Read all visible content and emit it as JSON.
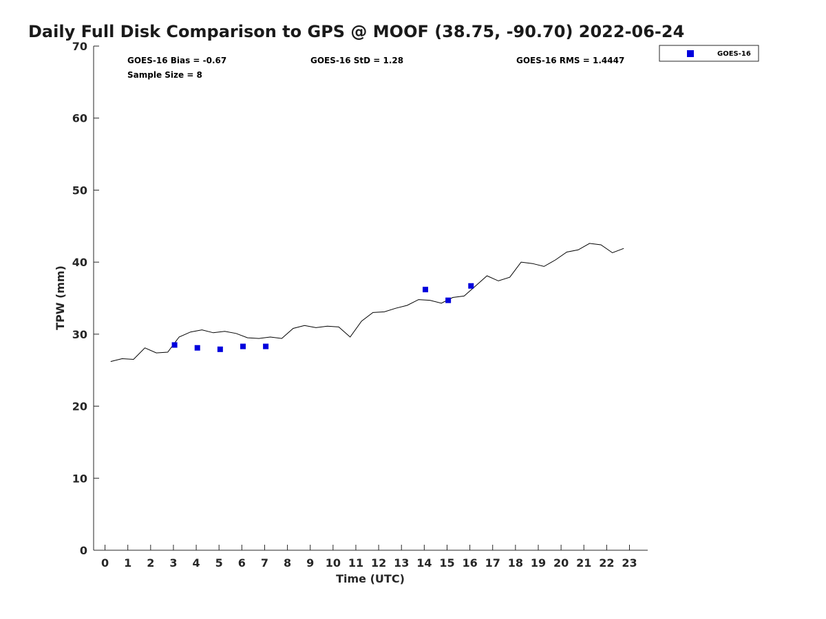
{
  "chart_data": {
    "type": "scatter",
    "title": "Daily Full Disk Comparison to GPS @ MOOF (38.75, -90.70) 2022-06-24",
    "xlabel": "Time (UTC)",
    "ylabel": "TPW (mm)",
    "xlim": [
      -0.5,
      23.8
    ],
    "ylim": [
      0,
      70
    ],
    "x_ticks": [
      0,
      1,
      2,
      3,
      4,
      5,
      6,
      7,
      8,
      9,
      10,
      11,
      12,
      13,
      14,
      15,
      16,
      17,
      18,
      19,
      20,
      21,
      22,
      23
    ],
    "y_ticks": [
      0,
      10,
      20,
      30,
      40,
      50,
      60,
      70
    ],
    "grid": false,
    "legend_position": "outside-top-right",
    "legend": [
      "GOES-16"
    ],
    "stats": {
      "bias": "GOES-16 Bias = -0.67",
      "std": "GOES-16 StD = 1.28",
      "rms": "GOES-16 RMS = 1.4447",
      "sample_size": "Sample Size = 8"
    },
    "series": [
      {
        "kind": "line",
        "color": "#000000",
        "x": [
          0.25,
          0.75,
          1.25,
          1.75,
          2.25,
          2.75,
          3.25,
          3.75,
          4.25,
          4.75,
          5.25,
          5.75,
          6.25,
          6.75,
          7.25,
          7.75,
          8.25,
          8.75,
          9.25,
          9.75,
          10.25,
          10.75,
          11.25,
          11.75,
          12.25,
          12.75,
          13.25,
          13.75,
          14.25,
          14.75,
          15.25,
          15.75,
          16.25,
          16.75,
          17.25,
          17.75,
          18.25,
          18.75,
          19.25,
          19.75,
          20.25,
          20.75,
          21.25,
          21.75,
          22.25,
          22.75
        ],
        "y": [
          26.2,
          26.6,
          26.5,
          28.1,
          27.4,
          27.5,
          29.6,
          30.3,
          30.6,
          30.2,
          30.4,
          30.1,
          29.5,
          29.4,
          29.6,
          29.4,
          30.8,
          31.2,
          30.9,
          31.1,
          31.0,
          29.6,
          31.8,
          33.0,
          33.1,
          33.6,
          34.0,
          34.8,
          34.7,
          34.3,
          35.1,
          35.3,
          36.7,
          38.1,
          37.4,
          37.9,
          40.0,
          39.8,
          39.4,
          40.3,
          41.4,
          41.7,
          42.6,
          42.4,
          41.3,
          41.9
        ]
      },
      {
        "name": "GOES-16",
        "kind": "scatter",
        "color": "#0000dd",
        "x": [
          3.05,
          4.05,
          5.05,
          6.05,
          7.05,
          14.05,
          15.05,
          16.05
        ],
        "y": [
          28.5,
          28.1,
          27.9,
          28.3,
          28.3,
          36.2,
          34.7,
          36.7
        ]
      }
    ]
  }
}
